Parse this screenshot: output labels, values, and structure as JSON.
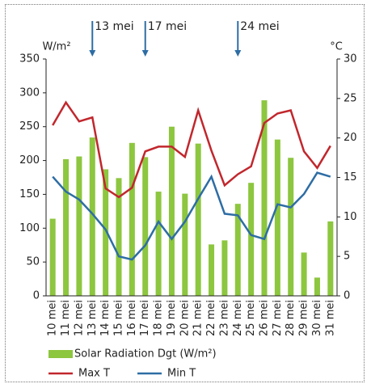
{
  "chart_data": {
    "type": "bar_line",
    "y_label": "W/m²",
    "y2_label": "°C",
    "categories": [
      "10 mei",
      "11 mei",
      "12 mei",
      "13 mei",
      "14 mei",
      "15 mei",
      "16 mei",
      "17 mei",
      "18 mei",
      "19 mei",
      "20 mei",
      "21 mei",
      "22 mei",
      "23 mei",
      "24 mei",
      "25 mei",
      "26 mei",
      "27 mei",
      "28 mei",
      "29 mei",
      "30 mei",
      "31 mei"
    ],
    "series": [
      {
        "name": "Solar Radiation Dgt (W/m²)",
        "type": "bar",
        "color": "#8dc63f",
        "values": [
          114,
          202,
          206,
          234,
          187,
          174,
          226,
          205,
          154,
          250,
          151,
          225,
          76,
          82,
          136,
          167,
          289,
          231,
          204,
          64,
          27,
          110
        ]
      },
      {
        "name": "Max T",
        "type": "line",
        "axis": "y2",
        "color": "#c1272d",
        "values": [
          21.6,
          24.5,
          22.1,
          22.6,
          13.6,
          12.5,
          13.7,
          18.3,
          18.9,
          18.9,
          17.6,
          23.5,
          18.4,
          14.0,
          15.4,
          16.4,
          21.9,
          23.1,
          23.5,
          18.3,
          16.2,
          19.0
        ]
      },
      {
        "name": "Min T",
        "type": "line",
        "axis": "y2",
        "color": "#2e6da4",
        "values": [
          15.1,
          13.2,
          12.2,
          10.4,
          8.4,
          5.0,
          4.6,
          6.4,
          9.4,
          7.2,
          9.4,
          12.3,
          15.1,
          10.4,
          10.2,
          7.7,
          7.2,
          11.6,
          11.2,
          12.9,
          15.6,
          15.1
        ]
      }
    ],
    "annotations": [
      "13 mei",
      "17 mei",
      "24 mei"
    ],
    "ylim": [
      0,
      350
    ],
    "yticks": [
      0,
      50,
      100,
      150,
      200,
      250,
      300,
      350
    ],
    "y2lim": [
      0,
      30
    ],
    "y2ticks": [
      0,
      5,
      10,
      15,
      20,
      25,
      30
    ],
    "grid": false
  }
}
